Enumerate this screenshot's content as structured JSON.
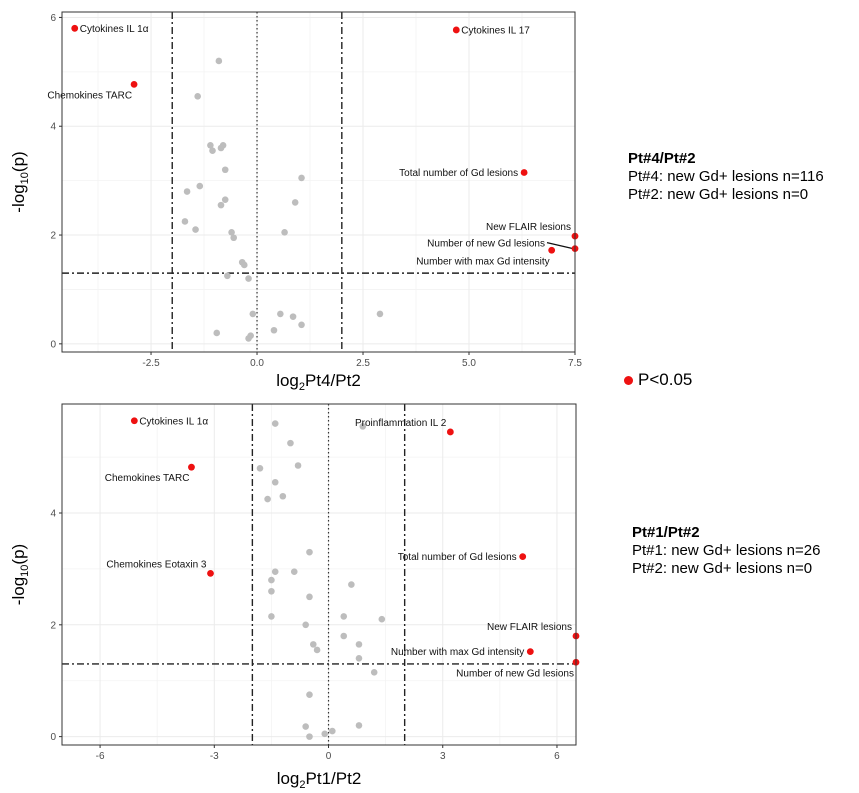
{
  "colors": {
    "significant": "#ee1111",
    "nonsignificant": "#bdbdbd",
    "grid": "#ebebeb"
  },
  "chart_data": [
    {
      "type": "scatter",
      "title": "",
      "xlabel": {
        "base": "log",
        "sub": "2",
        "rest": "Pt4/Pt2"
      },
      "ylabel": {
        "pre": "-log",
        "sub": "10",
        "post": "(p)"
      },
      "xlim": [
        -4.6,
        7.5
      ],
      "ylim": [
        -0.15,
        6.1
      ],
      "xticks": [
        -2.5,
        0.0,
        2.5,
        5.0,
        7.5
      ],
      "xtick_labels": [
        "-2.5",
        "0.0",
        "2.5",
        "5.0",
        "7.5"
      ],
      "yticks": [
        0,
        2,
        4,
        6
      ],
      "ytick_labels": [
        "0",
        "2",
        "4",
        "6"
      ],
      "vlines_dashdot": [
        -2,
        2
      ],
      "vline_dotted": 0,
      "hline_dashdot": 1.3,
      "grid": true,
      "significant_points": [
        {
          "label": "Cytokines IL 1α",
          "x": -4.3,
          "y": 5.8,
          "label_side": "right"
        },
        {
          "label": "Cytokines IL 17",
          "x": 4.7,
          "y": 5.77,
          "label_side": "right"
        },
        {
          "label": "Chemokines TARC",
          "x": -2.9,
          "y": 4.77,
          "label_side": "below-left"
        },
        {
          "label": "Total number of Gd lesions",
          "x": 6.3,
          "y": 3.15,
          "label_side": "left"
        },
        {
          "label": "New FLAIR lesions",
          "x": 7.5,
          "y": 1.98,
          "label_side": "above-left"
        },
        {
          "label": "Number of new Gd lesions",
          "x": 7.5,
          "y": 1.75,
          "label_side": "left-leader"
        },
        {
          "label": "Number with max Gd intensity",
          "x": 6.95,
          "y": 1.72,
          "label_side": "below-left"
        }
      ],
      "other_points": [
        {
          "x": -0.9,
          "y": 5.2
        },
        {
          "x": -1.4,
          "y": 4.55
        },
        {
          "x": -1.1,
          "y": 3.65
        },
        {
          "x": -1.05,
          "y": 3.55
        },
        {
          "x": -0.8,
          "y": 3.65
        },
        {
          "x": -0.85,
          "y": 3.6
        },
        {
          "x": -0.75,
          "y": 3.2
        },
        {
          "x": -1.35,
          "y": 2.9
        },
        {
          "x": -1.65,
          "y": 2.8
        },
        {
          "x": -0.75,
          "y": 2.65
        },
        {
          "x": -0.85,
          "y": 2.55
        },
        {
          "x": -0.6,
          "y": 2.05
        },
        {
          "x": -0.55,
          "y": 1.95
        },
        {
          "x": 1.05,
          "y": 3.05
        },
        {
          "x": 0.9,
          "y": 2.6
        },
        {
          "x": 0.65,
          "y": 2.05
        },
        {
          "x": -1.7,
          "y": 2.25
        },
        {
          "x": -1.45,
          "y": 2.1
        },
        {
          "x": -0.35,
          "y": 1.5
        },
        {
          "x": -0.3,
          "y": 1.45
        },
        {
          "x": -0.7,
          "y": 1.25
        },
        {
          "x": -0.2,
          "y": 1.2
        },
        {
          "x": -0.1,
          "y": 0.55
        },
        {
          "x": 0.55,
          "y": 0.55
        },
        {
          "x": 0.85,
          "y": 0.5
        },
        {
          "x": 1.05,
          "y": 0.35
        },
        {
          "x": 0.4,
          "y": 0.25
        },
        {
          "x": -0.2,
          "y": 0.1
        },
        {
          "x": -0.15,
          "y": 0.15
        },
        {
          "x": -0.95,
          "y": 0.2
        },
        {
          "x": 2.9,
          "y": 0.55
        }
      ]
    },
    {
      "type": "scatter",
      "title": "",
      "xlabel": {
        "base": "log",
        "sub": "2",
        "rest": "Pt1/Pt2"
      },
      "ylabel": {
        "pre": "-log",
        "sub": "10",
        "post": "(p)"
      },
      "xlim": [
        -7.0,
        6.5
      ],
      "ylim": [
        -0.15,
        5.95
      ],
      "xticks": [
        -6,
        -3,
        0,
        3,
        6
      ],
      "xtick_labels": [
        "-6",
        "-3",
        "0",
        "3",
        "6"
      ],
      "yticks": [
        0,
        2,
        4
      ],
      "ytick_labels": [
        "0",
        "2",
        "4"
      ],
      "vlines_dashdot": [
        -2,
        2
      ],
      "vline_dotted": 0,
      "hline_dashdot": 1.3,
      "grid": true,
      "significant_points": [
        {
          "label": "Cytokines IL 1α",
          "x": -5.1,
          "y": 5.65,
          "label_side": "right"
        },
        {
          "label": "Proinflammation IL 2",
          "x": 3.2,
          "y": 5.45,
          "label_side": "above-left"
        },
        {
          "label": "Chemokines TARC",
          "x": -3.6,
          "y": 4.82,
          "label_side": "below-left"
        },
        {
          "label": "Chemokines Eotaxin 3",
          "x": -3.1,
          "y": 2.92,
          "label_side": "above-left"
        },
        {
          "label": "Total number of Gd lesions",
          "x": 5.1,
          "y": 3.22,
          "label_side": "left"
        },
        {
          "label": "New FLAIR lesions",
          "x": 6.5,
          "y": 1.8,
          "label_side": "above-left"
        },
        {
          "label": "Number with max Gd intensity",
          "x": 5.3,
          "y": 1.52,
          "label_side": "left"
        },
        {
          "label": "Number of new Gd lesions",
          "x": 6.5,
          "y": 1.33,
          "label_side": "below-left"
        }
      ],
      "other_points": [
        {
          "x": -1.4,
          "y": 5.6
        },
        {
          "x": 0.9,
          "y": 5.55
        },
        {
          "x": -1.0,
          "y": 5.25
        },
        {
          "x": -0.8,
          "y": 4.85
        },
        {
          "x": -1.8,
          "y": 4.8
        },
        {
          "x": -1.4,
          "y": 4.55
        },
        {
          "x": -1.6,
          "y": 4.25
        },
        {
          "x": -1.2,
          "y": 4.3
        },
        {
          "x": -0.5,
          "y": 3.3
        },
        {
          "x": -1.4,
          "y": 2.95
        },
        {
          "x": -1.5,
          "y": 2.8
        },
        {
          "x": -0.9,
          "y": 2.95
        },
        {
          "x": -0.5,
          "y": 2.5
        },
        {
          "x": 0.6,
          "y": 2.72
        },
        {
          "x": -1.5,
          "y": 2.6
        },
        {
          "x": -1.5,
          "y": 2.15
        },
        {
          "x": -0.6,
          "y": 2.0
        },
        {
          "x": 0.4,
          "y": 2.15
        },
        {
          "x": 1.4,
          "y": 2.1
        },
        {
          "x": -0.4,
          "y": 1.65
        },
        {
          "x": -0.3,
          "y": 1.55
        },
        {
          "x": 0.8,
          "y": 1.65
        },
        {
          "x": 0.4,
          "y": 1.8
        },
        {
          "x": 1.2,
          "y": 1.15
        },
        {
          "x": 0.8,
          "y": 1.4
        },
        {
          "x": -0.5,
          "y": 0.75
        },
        {
          "x": 0.8,
          "y": 0.2
        },
        {
          "x": -0.6,
          "y": 0.18
        },
        {
          "x": -0.1,
          "y": 0.05
        },
        {
          "x": 0.1,
          "y": 0.1
        },
        {
          "x": -0.5,
          "y": 0.0
        }
      ]
    }
  ],
  "side_notes": [
    {
      "title": "Pt#4/Pt#2",
      "lines": [
        "Pt#4: new Gd+ lesions n=116",
        "Pt#2: new Gd+ lesions n=0"
      ]
    },
    {
      "title": "Pt#1/Pt#2",
      "lines": [
        "Pt#1: new Gd+ lesions n=26",
        "Pt#2: new Gd+ lesions n=0"
      ]
    }
  ],
  "legend": {
    "label": "P<0.05"
  }
}
